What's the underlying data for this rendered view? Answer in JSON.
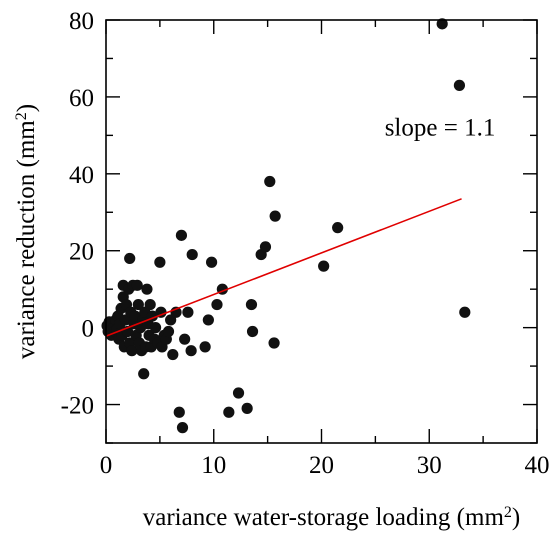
{
  "chart_data": {
    "type": "scatter",
    "xlabel": "variance water-storage loading (mm",
    "xlabel_sup": "2",
    "xlabel_suffix": ")",
    "ylabel": "variance reduction (mm",
    "ylabel_sup": "2",
    "ylabel_suffix": ")",
    "xlim": [
      0,
      40
    ],
    "ylim": [
      -30,
      80
    ],
    "x_ticks": [
      0,
      10,
      20,
      30,
      40
    ],
    "x_tick_labels": [
      "0",
      "10",
      "20",
      "30",
      "40"
    ],
    "y_ticks": [
      -20,
      0,
      20,
      40,
      60,
      80
    ],
    "y_tick_labels": [
      "-20",
      "0",
      "20",
      "40",
      "60",
      "80"
    ],
    "grid": false,
    "annotation": "slope = 1.1",
    "annotation_pos": [
      31,
      50
    ],
    "fit_line": {
      "color": "#e00000",
      "x": [
        0,
        33
      ],
      "y": [
        -2.2,
        33.5
      ]
    },
    "marker_color": "#111111",
    "points": [
      {
        "x": 0.1,
        "y": 0.5
      },
      {
        "x": 0.2,
        "y": -1
      },
      {
        "x": 0.3,
        "y": 1.5
      },
      {
        "x": 0.4,
        "y": 0.5
      },
      {
        "x": 0.5,
        "y": -2
      },
      {
        "x": 0.6,
        "y": 1
      },
      {
        "x": 0.7,
        "y": 0
      },
      {
        "x": 0.8,
        "y": -1
      },
      {
        "x": 0.9,
        "y": 2
      },
      {
        "x": 1.0,
        "y": -0.5
      },
      {
        "x": 1.1,
        "y": 3
      },
      {
        "x": 1.2,
        "y": -3
      },
      {
        "x": 1.3,
        "y": 1
      },
      {
        "x": 1.4,
        "y": 5
      },
      {
        "x": 1.5,
        "y": -2
      },
      {
        "x": 1.6,
        "y": 11
      },
      {
        "x": 1.6,
        "y": 8
      },
      {
        "x": 1.7,
        "y": -5
      },
      {
        "x": 1.8,
        "y": 2
      },
      {
        "x": 1.9,
        "y": 6
      },
      {
        "x": 2.0,
        "y": -1
      },
      {
        "x": 2.1,
        "y": 10
      },
      {
        "x": 2.2,
        "y": 18
      },
      {
        "x": 2.2,
        "y": -4
      },
      {
        "x": 2.3,
        "y": 4
      },
      {
        "x": 2.4,
        "y": -6
      },
      {
        "x": 2.5,
        "y": 11
      },
      {
        "x": 2.6,
        "y": 1
      },
      {
        "x": 2.7,
        "y": 3
      },
      {
        "x": 2.8,
        "y": -2
      },
      {
        "x": 2.9,
        "y": 11
      },
      {
        "x": 3.0,
        "y": 6
      },
      {
        "x": 3.1,
        "y": -4
      },
      {
        "x": 3.2,
        "y": 0
      },
      {
        "x": 3.3,
        "y": -6
      },
      {
        "x": 3.4,
        "y": 2
      },
      {
        "x": 3.5,
        "y": -12
      },
      {
        "x": 3.6,
        "y": 4
      },
      {
        "x": 3.7,
        "y": -5
      },
      {
        "x": 3.8,
        "y": 10
      },
      {
        "x": 3.9,
        "y": 1
      },
      {
        "x": 4.0,
        "y": -2
      },
      {
        "x": 4.1,
        "y": 6
      },
      {
        "x": 4.2,
        "y": -5
      },
      {
        "x": 4.3,
        "y": 3
      },
      {
        "x": 4.5,
        "y": -3
      },
      {
        "x": 4.6,
        "y": 0
      },
      {
        "x": 4.8,
        "y": -4
      },
      {
        "x": 5.0,
        "y": 17
      },
      {
        "x": 5.1,
        "y": 4
      },
      {
        "x": 5.2,
        "y": -5
      },
      {
        "x": 5.4,
        "y": -2
      },
      {
        "x": 5.6,
        "y": -3
      },
      {
        "x": 5.8,
        "y": -1
      },
      {
        "x": 6.0,
        "y": 2
      },
      {
        "x": 6.2,
        "y": -7
      },
      {
        "x": 6.5,
        "y": 4
      },
      {
        "x": 6.8,
        "y": -22
      },
      {
        "x": 7.0,
        "y": 24
      },
      {
        "x": 7.1,
        "y": -26
      },
      {
        "x": 7.3,
        "y": -3
      },
      {
        "x": 7.6,
        "y": 4
      },
      {
        "x": 7.9,
        "y": -6
      },
      {
        "x": 8.0,
        "y": 19
      },
      {
        "x": 9.2,
        "y": -5
      },
      {
        "x": 9.5,
        "y": 2
      },
      {
        "x": 9.8,
        "y": 17
      },
      {
        "x": 10.3,
        "y": 6
      },
      {
        "x": 10.8,
        "y": 10
      },
      {
        "x": 11.4,
        "y": -22
      },
      {
        "x": 12.3,
        "y": -17
      },
      {
        "x": 13.1,
        "y": -21
      },
      {
        "x": 13.5,
        "y": 6
      },
      {
        "x": 13.6,
        "y": -1
      },
      {
        "x": 14.4,
        "y": 19
      },
      {
        "x": 14.8,
        "y": 21
      },
      {
        "x": 15.2,
        "y": 38
      },
      {
        "x": 15.7,
        "y": 29
      },
      {
        "x": 15.6,
        "y": -4
      },
      {
        "x": 20.2,
        "y": 16
      },
      {
        "x": 21.5,
        "y": 26
      },
      {
        "x": 31.2,
        "y": 79
      },
      {
        "x": 32.8,
        "y": 63
      },
      {
        "x": 33.3,
        "y": 4
      }
    ]
  }
}
